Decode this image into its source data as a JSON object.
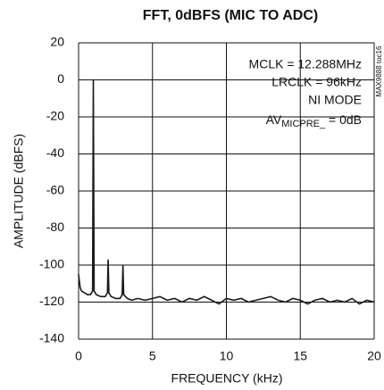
{
  "chart_data": {
    "type": "line",
    "title": "FFT, 0dBFS (MIC TO ADC)",
    "x_label": "FREQUENCY (kHz)",
    "y_label": "AMPLITUDE (dBFS)",
    "annotations": [
      "MCLK = 12.288MHz",
      "LRCLK = 96kHz",
      "NI MODE"
    ],
    "annotation_av": {
      "base": "AV",
      "subscript": "MICPRE_",
      "rest": " = 0dB"
    },
    "side_note": "MAX9888 toc16",
    "xlim": [
      0,
      20
    ],
    "xticks": [
      0,
      5,
      10,
      15,
      20
    ],
    "ylim": [
      -140,
      20
    ],
    "yticks": [
      -140,
      -120,
      -100,
      -80,
      -60,
      -40,
      -20,
      0,
      20
    ],
    "grid": true,
    "color": "#1a1a1a",
    "x": [
      0,
      0.1,
      0.2,
      0.4,
      0.6,
      0.8,
      0.95,
      1.0,
      1.05,
      1.2,
      1.5,
      1.8,
      1.95,
      2.0,
      2.05,
      2.2,
      2.5,
      2.8,
      2.95,
      3.0,
      3.05,
      3.3,
      3.6,
      4,
      4.5,
      5,
      5.5,
      6,
      6.5,
      7,
      7.5,
      8,
      8.5,
      9,
      9.5,
      10,
      10.5,
      11,
      11.5,
      12,
      12.5,
      13,
      13.5,
      14,
      14.5,
      15,
      15.5,
      16,
      16.5,
      17,
      17.5,
      18,
      18.5,
      19,
      19.5,
      20
    ],
    "values": [
      -105,
      -112,
      -114,
      -115,
      -116,
      -116,
      -114,
      0,
      -114,
      -116,
      -117,
      -117,
      -115,
      -97,
      -115,
      -117,
      -118,
      -118,
      -116,
      -100,
      -116,
      -118,
      -119,
      -118,
      -119,
      -118,
      -117,
      -119,
      -118,
      -120,
      -118,
      -119,
      -117,
      -119,
      -121,
      -118,
      -119,
      -118,
      -120,
      -119,
      -118,
      -117,
      -119,
      -120,
      -118,
      -119,
      -121,
      -119,
      -118,
      -120,
      -119,
      -120,
      -118,
      -121,
      -119,
      -120
    ]
  }
}
